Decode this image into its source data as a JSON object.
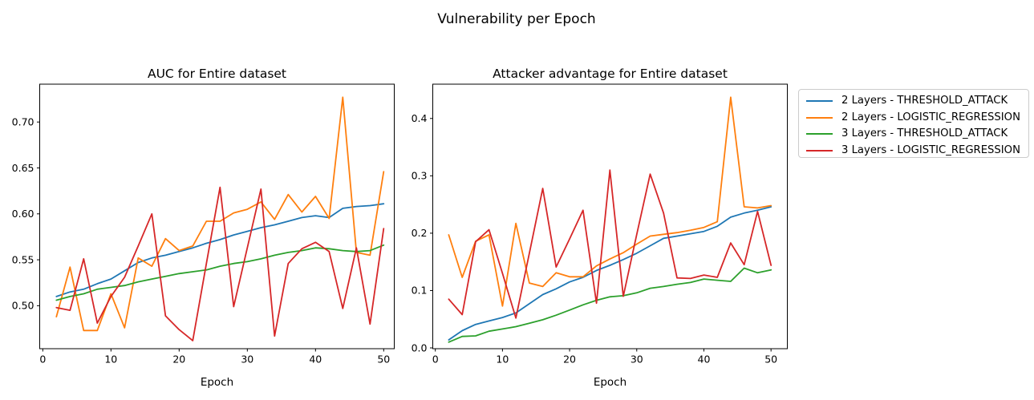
{
  "figure": {
    "suptitle": "Vulnerability per Epoch"
  },
  "legend": {
    "items": [
      {
        "label": "2 Layers - THRESHOLD_ATTACK",
        "color": "#1f77b4"
      },
      {
        "label": "2 Layers - LOGISTIC_REGRESSION",
        "color": "#ff7f0e"
      },
      {
        "label": "3 Layers - THRESHOLD_ATTACK",
        "color": "#2ca02c"
      },
      {
        "label": "3 Layers - LOGISTIC_REGRESSION",
        "color": "#d62728"
      }
    ]
  },
  "chart_data": [
    {
      "type": "line",
      "title": "AUC for Entire dataset",
      "xlabel": "Epoch",
      "grid": false,
      "x": [
        2,
        4,
        6,
        8,
        10,
        12,
        14,
        16,
        18,
        20,
        22,
        24,
        26,
        28,
        30,
        32,
        34,
        36,
        38,
        40,
        42,
        44,
        46,
        48,
        50
      ],
      "xlim": [
        -0.45,
        51.55
      ],
      "ylim": [
        0.4532,
        0.7412
      ],
      "xticks": [
        0,
        10,
        20,
        30,
        40,
        50
      ],
      "xtick_labels": [
        "0",
        "10",
        "20",
        "30",
        "40",
        "50"
      ],
      "yticks": [
        0.5,
        0.55,
        0.6,
        0.65,
        0.7
      ],
      "ytick_labels": [
        "0.50",
        "0.55",
        "0.60",
        "0.65",
        "0.70"
      ],
      "series": [
        {
          "name": "2 Layers - THRESHOLD_ATTACK",
          "color": "#1f77b4",
          "values": [
            0.51,
            0.515,
            0.518,
            0.524,
            0.529,
            0.538,
            0.547,
            0.552,
            0.555,
            0.559,
            0.563,
            0.568,
            0.572,
            0.577,
            0.581,
            0.585,
            0.588,
            0.592,
            0.596,
            0.598,
            0.596,
            0.606,
            0.608,
            0.609,
            0.611
          ]
        },
        {
          "name": "2 Layers - LOGISTIC_REGRESSION",
          "color": "#ff7f0e",
          "values": [
            0.488,
            0.542,
            0.473,
            0.473,
            0.513,
            0.476,
            0.552,
            0.543,
            0.573,
            0.56,
            0.565,
            0.592,
            0.592,
            0.601,
            0.605,
            0.613,
            0.594,
            0.621,
            0.602,
            0.619,
            0.595,
            0.727,
            0.558,
            0.555,
            0.646
          ]
        },
        {
          "name": "3 Layers - THRESHOLD_ATTACK",
          "color": "#2ca02c",
          "values": [
            0.506,
            0.51,
            0.513,
            0.518,
            0.52,
            0.522,
            0.526,
            0.529,
            0.532,
            0.535,
            0.537,
            0.539,
            0.543,
            0.546,
            0.548,
            0.551,
            0.555,
            0.558,
            0.56,
            0.563,
            0.562,
            0.56,
            0.559,
            0.56,
            0.566
          ]
        },
        {
          "name": "3 Layers - LOGISTIC_REGRESSION",
          "color": "#d62728",
          "values": [
            0.498,
            0.495,
            0.551,
            0.481,
            0.51,
            0.531,
            0.565,
            0.6,
            0.489,
            0.474,
            0.462,
            0.546,
            0.629,
            0.499,
            0.563,
            0.627,
            0.467,
            0.546,
            0.562,
            0.569,
            0.559,
            0.497,
            0.563,
            0.48,
            0.584
          ]
        }
      ]
    },
    {
      "type": "line",
      "title": "Attacker advantage for Entire dataset",
      "xlabel": "Epoch",
      "grid": false,
      "x": [
        2,
        4,
        6,
        8,
        10,
        12,
        14,
        16,
        18,
        20,
        22,
        24,
        26,
        28,
        30,
        32,
        34,
        36,
        38,
        40,
        42,
        44,
        46,
        48,
        50
      ],
      "xlim": [
        -0.38,
        52.43
      ],
      "ylim": [
        -0.0014,
        0.4598
      ],
      "xticks": [
        0,
        10,
        20,
        30,
        40,
        50
      ],
      "xtick_labels": [
        "0",
        "10",
        "20",
        "30",
        "40",
        "50"
      ],
      "yticks": [
        0.0,
        0.1,
        0.2,
        0.3,
        0.4
      ],
      "ytick_labels": [
        "0.0",
        "0.1",
        "0.2",
        "0.3",
        "0.4"
      ],
      "series": [
        {
          "name": "2 Layers - THRESHOLD_ATTACK",
          "color": "#1f77b4",
          "values": [
            0.014,
            0.03,
            0.041,
            0.047,
            0.053,
            0.061,
            0.077,
            0.093,
            0.103,
            0.115,
            0.123,
            0.135,
            0.144,
            0.154,
            0.165,
            0.178,
            0.191,
            0.195,
            0.199,
            0.203,
            0.212,
            0.228,
            0.235,
            0.24,
            0.246
          ]
        },
        {
          "name": "2 Layers - LOGISTIC_REGRESSION",
          "color": "#ff7f0e",
          "values": [
            0.197,
            0.123,
            0.186,
            0.197,
            0.073,
            0.217,
            0.113,
            0.107,
            0.131,
            0.124,
            0.124,
            0.143,
            0.155,
            0.166,
            0.181,
            0.195,
            0.198,
            0.201,
            0.205,
            0.21,
            0.22,
            0.437,
            0.246,
            0.244,
            0.248
          ]
        },
        {
          "name": "3 Layers - THRESHOLD_ATTACK",
          "color": "#2ca02c",
          "values": [
            0.01,
            0.02,
            0.021,
            0.029,
            0.033,
            0.037,
            0.043,
            0.049,
            0.057,
            0.066,
            0.075,
            0.083,
            0.089,
            0.091,
            0.096,
            0.104,
            0.107,
            0.111,
            0.114,
            0.12,
            0.118,
            0.116,
            0.139,
            0.131,
            0.136
          ]
        },
        {
          "name": "3 Layers - LOGISTIC_REGRESSION",
          "color": "#d62728",
          "values": [
            0.085,
            0.058,
            0.185,
            0.206,
            0.13,
            0.052,
            0.165,
            0.278,
            0.141,
            0.19,
            0.24,
            0.078,
            0.31,
            0.09,
            0.198,
            0.303,
            0.235,
            0.122,
            0.121,
            0.127,
            0.123,
            0.183,
            0.145,
            0.238,
            0.144
          ]
        }
      ]
    }
  ]
}
